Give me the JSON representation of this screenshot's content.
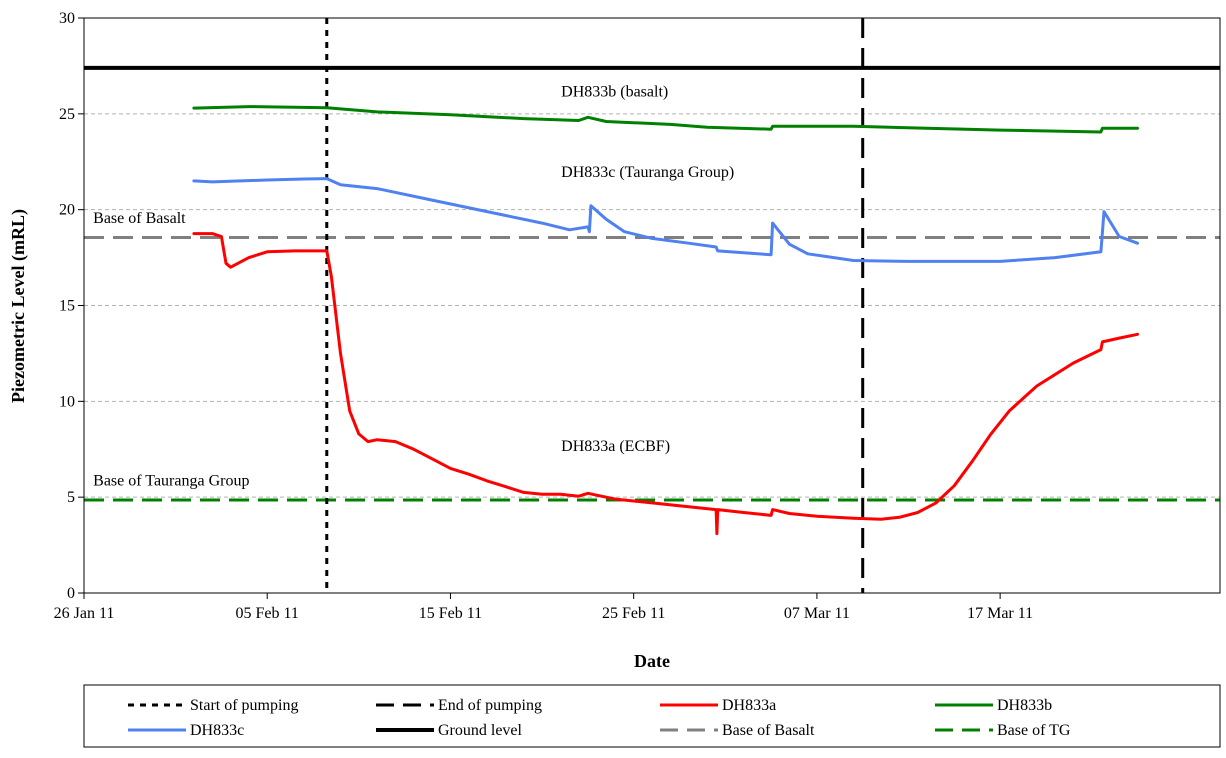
{
  "chart_data": {
    "type": "line",
    "xlabel": "Date",
    "ylabel": "Piezometric Level (mRL)",
    "xlim": [
      "2011-01-26",
      "2011-03-29"
    ],
    "ylim": [
      0,
      30
    ],
    "y_ticks": [
      0,
      5,
      10,
      15,
      20,
      25,
      30
    ],
    "x_ticks": [
      "26 Jan 11",
      "05 Feb 11",
      "15 Feb 11",
      "25 Feb 11",
      "07 Mar 11",
      "17 Mar 11"
    ],
    "x_tick_dates": [
      "2011-01-26",
      "2011-02-05",
      "2011-02-15",
      "2011-02-25",
      "2011-03-07",
      "2011-03-17"
    ],
    "grid": "horizontal dashed",
    "legend_position": "bottom",
    "vertical_markers": [
      {
        "name": "Start of pumping",
        "date": "2011-02-08T06:00",
        "color": "#000000",
        "style": "dotted"
      },
      {
        "name": "End of pumping",
        "date": "2011-03-09T12:00",
        "color": "#000000",
        "style": "dashed"
      }
    ],
    "horizontal_markers": [
      {
        "name": "Ground level",
        "value": 27.4,
        "color": "#000000",
        "style": "solid"
      },
      {
        "name": "Base of Basalt",
        "value": 18.55,
        "color": "#808080",
        "style": "dashed"
      },
      {
        "name": "Base of TG",
        "value": 4.85,
        "color": "#008000",
        "style": "dashed"
      }
    ],
    "annotations": [
      {
        "text": "DH833b (basalt)",
        "date": "2011-02-21T01:00",
        "value": 25.9
      },
      {
        "text": "DH833c (Tauranga Group)",
        "date": "2011-02-21T01:00",
        "value": 21.7
      },
      {
        "text": "Base of Basalt",
        "date": "2011-01-26T12:00",
        "value": 19.3
      },
      {
        "text": "DH833a (ECBF)",
        "date": "2011-02-21T01:00",
        "value": 7.4
      },
      {
        "text": "Base of Tauranga Group",
        "date": "2011-01-26T12:00",
        "value": 5.6
      }
    ],
    "series": [
      {
        "name": "DH833a",
        "color": "#ff0000",
        "points": [
          [
            "2011-02-01T00:00",
            18.75
          ],
          [
            "2011-02-02T00:00",
            18.75
          ],
          [
            "2011-02-02T12:00",
            18.6
          ],
          [
            "2011-02-02T18:00",
            17.2
          ],
          [
            "2011-02-03T00:00",
            17.0
          ],
          [
            "2011-02-04T00:00",
            17.5
          ],
          [
            "2011-02-05T00:00",
            17.8
          ],
          [
            "2011-02-06T12:00",
            17.85
          ],
          [
            "2011-02-08T06:00",
            17.85
          ],
          [
            "2011-02-08T12:00",
            16.5
          ],
          [
            "2011-02-09T00:00",
            12.5
          ],
          [
            "2011-02-09T12:00",
            9.5
          ],
          [
            "2011-02-10T00:00",
            8.3
          ],
          [
            "2011-02-10T12:00",
            7.9
          ],
          [
            "2011-02-11T00:00",
            8.0
          ],
          [
            "2011-02-12T00:00",
            7.9
          ],
          [
            "2011-02-13T00:00",
            7.5
          ],
          [
            "2011-02-14T00:00",
            7.0
          ],
          [
            "2011-02-15T00:00",
            6.5
          ],
          [
            "2011-02-16T00:00",
            6.2
          ],
          [
            "2011-02-17T00:00",
            5.85
          ],
          [
            "2011-02-18T00:00",
            5.55
          ],
          [
            "2011-02-19T00:00",
            5.25
          ],
          [
            "2011-02-20T00:00",
            5.15
          ],
          [
            "2011-02-21T00:00",
            5.15
          ],
          [
            "2011-02-22T00:00",
            5.05
          ],
          [
            "2011-02-22T12:00",
            5.2
          ],
          [
            "2011-02-23T12:00",
            5.0
          ],
          [
            "2011-02-24T00:00",
            4.9
          ],
          [
            "2011-02-26T00:00",
            4.7
          ],
          [
            "2011-02-28T00:00",
            4.5
          ],
          [
            "2011-03-01T12:00",
            4.35
          ],
          [
            "2011-03-01T13:00",
            3.1
          ],
          [
            "2011-03-01T14:00",
            4.35
          ],
          [
            "2011-03-03T00:00",
            4.2
          ],
          [
            "2011-03-04T12:00",
            4.05
          ],
          [
            "2011-03-04T14:00",
            4.35
          ],
          [
            "2011-03-05T12:00",
            4.15
          ],
          [
            "2011-03-07T00:00",
            4.0
          ],
          [
            "2011-03-09T00:00",
            3.9
          ],
          [
            "2011-03-10T12:00",
            3.85
          ],
          [
            "2011-03-11T12:00",
            3.95
          ],
          [
            "2011-03-12T12:00",
            4.2
          ],
          [
            "2011-03-13T12:00",
            4.7
          ],
          [
            "2011-03-14T12:00",
            5.6
          ],
          [
            "2011-03-15T12:00",
            6.9
          ],
          [
            "2011-03-16T12:00",
            8.3
          ],
          [
            "2011-03-17T12:00",
            9.5
          ],
          [
            "2011-03-19T00:00",
            10.8
          ],
          [
            "2011-03-21T00:00",
            12.0
          ],
          [
            "2011-03-22T12:00",
            12.7
          ],
          [
            "2011-03-22T14:00",
            13.1
          ],
          [
            "2011-03-23T12:00",
            13.3
          ],
          [
            "2011-03-24T12:00",
            13.5
          ]
        ]
      },
      {
        "name": "DH833b",
        "color": "#008000",
        "points": [
          [
            "2011-02-01T00:00",
            25.3
          ],
          [
            "2011-02-04T00:00",
            25.38
          ],
          [
            "2011-02-08T06:00",
            25.32
          ],
          [
            "2011-02-11T00:00",
            25.1
          ],
          [
            "2011-02-15T00:00",
            24.95
          ],
          [
            "2011-02-19T00:00",
            24.75
          ],
          [
            "2011-02-22T00:00",
            24.65
          ],
          [
            "2011-02-22T12:00",
            24.82
          ],
          [
            "2011-02-23T12:00",
            24.6
          ],
          [
            "2011-02-27T00:00",
            24.45
          ],
          [
            "2011-03-01T00:00",
            24.3
          ],
          [
            "2011-03-04T12:00",
            24.2
          ],
          [
            "2011-03-04T14:00",
            24.35
          ],
          [
            "2011-03-09T00:00",
            24.35
          ],
          [
            "2011-03-13T00:00",
            24.25
          ],
          [
            "2011-03-17T00:00",
            24.15
          ],
          [
            "2011-03-22T12:00",
            24.05
          ],
          [
            "2011-03-22T14:00",
            24.25
          ],
          [
            "2011-03-24T12:00",
            24.25
          ]
        ]
      },
      {
        "name": "DH833c",
        "color": "#4f81f0",
        "points": [
          [
            "2011-02-01T00:00",
            21.5
          ],
          [
            "2011-02-02T00:00",
            21.45
          ],
          [
            "2011-02-05T00:00",
            21.55
          ],
          [
            "2011-02-07T00:00",
            21.6
          ],
          [
            "2011-02-08T06:00",
            21.62
          ],
          [
            "2011-02-09T00:00",
            21.3
          ],
          [
            "2011-02-11T00:00",
            21.1
          ],
          [
            "2011-02-14T00:00",
            20.5
          ],
          [
            "2011-02-17T00:00",
            19.9
          ],
          [
            "2011-02-20T00:00",
            19.3
          ],
          [
            "2011-02-21T12:00",
            18.95
          ],
          [
            "2011-02-22T12:00",
            19.1
          ],
          [
            "2011-02-22T14:00",
            18.85
          ],
          [
            "2011-02-22T16:00",
            20.2
          ],
          [
            "2011-02-23T12:00",
            19.5
          ],
          [
            "2011-02-24T12:00",
            18.85
          ],
          [
            "2011-02-26T00:00",
            18.5
          ],
          [
            "2011-02-28T00:00",
            18.25
          ],
          [
            "2011-03-01T12:00",
            18.05
          ],
          [
            "2011-03-01T14:00",
            17.85
          ],
          [
            "2011-03-03T00:00",
            17.75
          ],
          [
            "2011-03-04T12:00",
            17.65
          ],
          [
            "2011-03-04T14:00",
            19.3
          ],
          [
            "2011-03-05T12:00",
            18.2
          ],
          [
            "2011-03-06T12:00",
            17.7
          ],
          [
            "2011-03-09T00:00",
            17.35
          ],
          [
            "2011-03-12T00:00",
            17.3
          ],
          [
            "2011-03-17T00:00",
            17.3
          ],
          [
            "2011-03-20T00:00",
            17.5
          ],
          [
            "2011-03-22T12:00",
            17.8
          ],
          [
            "2011-03-22T16:00",
            19.9
          ],
          [
            "2011-03-23T12:00",
            18.6
          ],
          [
            "2011-03-24T12:00",
            18.25
          ]
        ]
      }
    ],
    "legend": [
      {
        "label": "Start of pumping",
        "color": "#000000",
        "style": "dotted"
      },
      {
        "label": "End of pumping",
        "color": "#000000",
        "style": "dashed"
      },
      {
        "label": "DH833a",
        "color": "#ff0000",
        "style": "solid"
      },
      {
        "label": "DH833b",
        "color": "#008000",
        "style": "solid"
      },
      {
        "label": "DH833c",
        "color": "#4f81f0",
        "style": "solid"
      },
      {
        "label": "Ground level",
        "color": "#000000",
        "style": "solid-thick"
      },
      {
        "label": "Base of Basalt",
        "color": "#808080",
        "style": "dashed"
      },
      {
        "label": "Base of TG",
        "color": "#008000",
        "style": "dashed"
      }
    ]
  }
}
